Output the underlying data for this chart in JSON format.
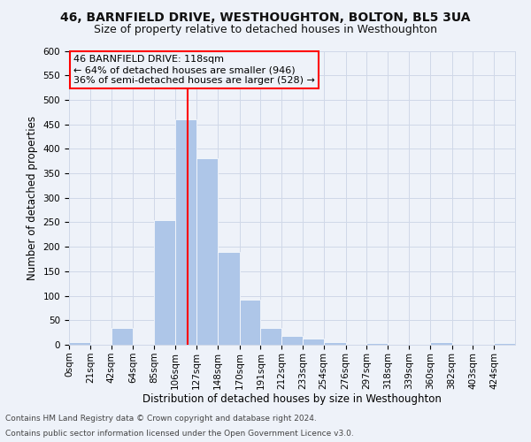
{
  "title": "46, BARNFIELD DRIVE, WESTHOUGHTON, BOLTON, BL5 3UA",
  "subtitle": "Size of property relative to detached houses in Westhoughton",
  "xlabel": "Distribution of detached houses by size in Westhoughton",
  "ylabel": "Number of detached properties",
  "footnote1": "Contains HM Land Registry data © Crown copyright and database right 2024.",
  "footnote2": "Contains public sector information licensed under the Open Government Licence v3.0.",
  "annotation_line1": "46 BARNFIELD DRIVE: 118sqm",
  "annotation_line2": "← 64% of detached houses are smaller (946)",
  "annotation_line3": "36% of semi-detached houses are larger (528) →",
  "bar_edges": [
    0,
    21,
    42,
    64,
    85,
    106,
    127,
    148,
    170,
    191,
    212,
    233,
    254,
    276,
    297,
    318,
    339,
    360,
    382,
    403,
    424,
    445
  ],
  "bar_heights": [
    5,
    0,
    35,
    0,
    255,
    460,
    380,
    190,
    92,
    35,
    18,
    12,
    5,
    0,
    4,
    0,
    0,
    5,
    0,
    0,
    4
  ],
  "bar_color": "#aec6e8",
  "bar_edgecolor": "#ffffff",
  "redline_x": 118,
  "ylim": [
    0,
    600
  ],
  "yticks": [
    0,
    50,
    100,
    150,
    200,
    250,
    300,
    350,
    400,
    450,
    500,
    550,
    600
  ],
  "xtick_labels": [
    "0sqm",
    "21sqm",
    "42sqm",
    "64sqm",
    "85sqm",
    "106sqm",
    "127sqm",
    "148sqm",
    "170sqm",
    "191sqm",
    "212sqm",
    "233sqm",
    "254sqm",
    "276sqm",
    "297sqm",
    "318sqm",
    "339sqm",
    "360sqm",
    "382sqm",
    "403sqm",
    "424sqm"
  ],
  "grid_color": "#d0d8e8",
  "background_color": "#eef2f9",
  "title_fontsize": 10,
  "subtitle_fontsize": 9,
  "axis_label_fontsize": 8.5,
  "tick_fontsize": 7.5,
  "annotation_fontsize": 8,
  "footnote_fontsize": 6.5
}
